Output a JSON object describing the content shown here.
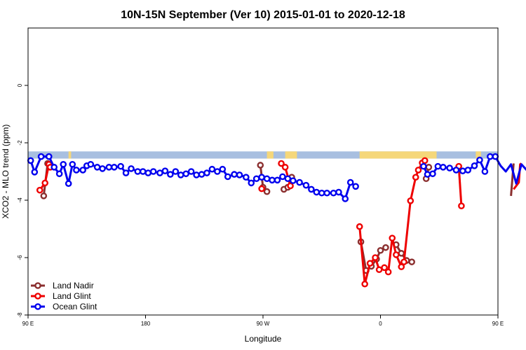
{
  "chart_data": {
    "type": "line",
    "title": "10N-15N September (Ver 10)   2015-01-01 to 2020-12-18",
    "xlabel": "Longitude",
    "ylabel": "XCO2 - MLO trend (ppm)",
    "xlim": [
      90,
      450
    ],
    "ylim": [
      -8,
      2
    ],
    "x_ticks": [
      {
        "value": 90,
        "label": "90 E"
      },
      {
        "value": 180,
        "label": "180"
      },
      {
        "value": 270,
        "label": "90 W"
      },
      {
        "value": 360,
        "label": "0"
      },
      {
        "value": 450,
        "label": "90 E"
      },
      {
        "value": 540,
        "label": "180"
      }
    ],
    "y_ticks": [
      {
        "value": 0,
        "label": "0"
      },
      {
        "value": -2,
        "label": "-2"
      },
      {
        "value": -4,
        "label": "-4"
      },
      {
        "value": -6,
        "label": "-6"
      },
      {
        "value": -8,
        "label": "-8"
      }
    ],
    "legend_position": "bottom-left",
    "land_band": {
      "y_top": -2.3,
      "y_bottom": -2.55,
      "water_color": "#a8bfe0",
      "land_color": "#f5d77a",
      "land_segments": [
        [
          121,
          123
        ],
        [
          273,
          278
        ],
        [
          287,
          296
        ],
        [
          344,
          403
        ],
        [
          433,
          437
        ],
        [
          487,
          489
        ]
      ]
    },
    "series": [
      {
        "name": "Land Nadir",
        "color": "#8b2f2f",
        "points": [
          [
            102,
            -3.85
          ],
          [
            105,
            -2.72
          ],
          [
            107,
            -2.8
          ],
          [
            268,
            -2.78
          ],
          [
            270,
            -3.55
          ],
          [
            273,
            -3.7
          ],
          [
            286,
            -3.62
          ],
          [
            289,
            -3.55
          ],
          [
            292,
            -3.2
          ],
          [
            345,
            -5.45
          ],
          [
            349,
            -6.45
          ],
          [
            353,
            -6.3
          ],
          [
            357,
            -6.05
          ],
          [
            360,
            -5.75
          ],
          [
            364,
            -5.65
          ],
          [
            372,
            -5.55
          ],
          [
            376,
            -5.85
          ],
          [
            380,
            -6.1
          ],
          [
            384,
            -6.15
          ],
          [
            395,
            -3.25
          ],
          [
            397,
            -2.85
          ],
          [
            460,
            -3.85
          ],
          [
            462,
            -2.72
          ]
        ]
      },
      {
        "name": "Land Glint",
        "color": "#ee0000",
        "points": [
          [
            99,
            -3.65
          ],
          [
            103,
            -3.4
          ],
          [
            106,
            -2.75
          ],
          [
            107,
            -2.85
          ],
          [
            269,
            -3.6
          ],
          [
            284,
            -2.72
          ],
          [
            287,
            -2.85
          ],
          [
            291,
            -3.5
          ],
          [
            344,
            -4.92
          ],
          [
            348,
            -6.92
          ],
          [
            352,
            -6.2
          ],
          [
            356,
            -6.0
          ],
          [
            359,
            -6.42
          ],
          [
            363,
            -6.35
          ],
          [
            366,
            -6.5
          ],
          [
            369,
            -5.32
          ],
          [
            372,
            -5.9
          ],
          [
            376,
            -6.32
          ],
          [
            378,
            -6.15
          ],
          [
            383,
            -4.02
          ],
          [
            387,
            -3.2
          ],
          [
            389,
            -2.95
          ],
          [
            392,
            -2.7
          ],
          [
            394,
            -2.62
          ],
          [
            420,
            -2.82
          ],
          [
            422,
            -4.2
          ],
          [
            462,
            -3.62
          ],
          [
            466,
            -3.38
          ],
          [
            467,
            -2.75
          ],
          [
            468,
            -2.72
          ]
        ]
      },
      {
        "name": "Ocean Glint",
        "color": "#0000ee",
        "points": [
          [
            92,
            -2.62
          ],
          [
            95,
            -3.02
          ],
          [
            100,
            -2.48
          ],
          [
            106,
            -2.48
          ],
          [
            110,
            -2.85
          ],
          [
            114,
            -3.08
          ],
          [
            117,
            -2.75
          ],
          [
            121,
            -3.42
          ],
          [
            124,
            -2.75
          ],
          [
            127,
            -2.95
          ],
          [
            132,
            -2.95
          ],
          [
            135,
            -2.8
          ],
          [
            138,
            -2.75
          ],
          [
            143,
            -2.85
          ],
          [
            147,
            -2.9
          ],
          [
            152,
            -2.85
          ],
          [
            156,
            -2.85
          ],
          [
            161,
            -2.82
          ],
          [
            165,
            -3.05
          ],
          [
            169,
            -2.9
          ],
          [
            174,
            -3.0
          ],
          [
            178,
            -3.0
          ],
          [
            182,
            -3.05
          ],
          [
            186,
            -3.0
          ],
          [
            191,
            -3.05
          ],
          [
            195,
            -2.98
          ],
          [
            199,
            -3.1
          ],
          [
            203,
            -3.0
          ],
          [
            207,
            -3.12
          ],
          [
            211,
            -3.08
          ],
          [
            215,
            -3.0
          ],
          [
            219,
            -3.12
          ],
          [
            223,
            -3.1
          ],
          [
            227,
            -3.05
          ],
          [
            231,
            -2.92
          ],
          [
            235,
            -3.0
          ],
          [
            239,
            -2.92
          ],
          [
            243,
            -3.18
          ],
          [
            248,
            -3.1
          ],
          [
            252,
            -3.12
          ],
          [
            257,
            -3.2
          ],
          [
            261,
            -3.4
          ],
          [
            265,
            -3.25
          ],
          [
            269,
            -3.2
          ],
          [
            273,
            -3.25
          ],
          [
            277,
            -3.3
          ],
          [
            281,
            -3.3
          ],
          [
            285,
            -3.18
          ],
          [
            289,
            -3.25
          ],
          [
            293,
            -3.32
          ],
          [
            298,
            -3.38
          ],
          [
            303,
            -3.48
          ],
          [
            307,
            -3.62
          ],
          [
            311,
            -3.72
          ],
          [
            315,
            -3.75
          ],
          [
            319,
            -3.75
          ],
          [
            324,
            -3.75
          ],
          [
            328,
            -3.72
          ],
          [
            333,
            -3.95
          ],
          [
            337,
            -3.38
          ],
          [
            341,
            -3.52
          ],
          [
            393,
            -2.82
          ],
          [
            396,
            -3.1
          ],
          [
            400,
            -3.08
          ],
          [
            404,
            -2.82
          ],
          [
            408,
            -2.85
          ],
          [
            413,
            -2.88
          ],
          [
            418,
            -2.95
          ],
          [
            423,
            -2.98
          ],
          [
            427,
            -2.95
          ],
          [
            432,
            -2.8
          ],
          [
            436,
            -2.6
          ],
          [
            440,
            -3.0
          ],
          [
            444,
            -2.48
          ],
          [
            448,
            -2.48
          ],
          [
            452,
            -2.8
          ],
          [
            456,
            -3.0
          ],
          [
            460,
            -2.75
          ],
          [
            464,
            -3.42
          ],
          [
            468,
            -2.75
          ],
          [
            472,
            -2.95
          ],
          [
            476,
            -2.95
          ],
          [
            480,
            -2.8
          ],
          [
            484,
            -2.75
          ],
          [
            488,
            -2.85
          ],
          [
            492,
            -2.9
          ],
          [
            496,
            -2.85
          ],
          [
            500,
            -2.85
          ],
          [
            504,
            -2.82
          ]
        ]
      }
    ],
    "breaks": {
      "Ocean Glint": [
        [
          341,
          393
        ]
      ],
      "Land Nadir": [
        [
          107,
          268
        ],
        [
          273,
          286
        ],
        [
          292,
          345
        ],
        [
          364,
          372
        ],
        [
          384,
          395
        ],
        [
          397,
          460
        ]
      ],
      "Land Glint": [
        [
          107,
          269
        ],
        [
          269,
          284
        ],
        [
          291,
          344
        ],
        [
          394,
          420
        ],
        [
          422,
          462
        ]
      ]
    }
  }
}
